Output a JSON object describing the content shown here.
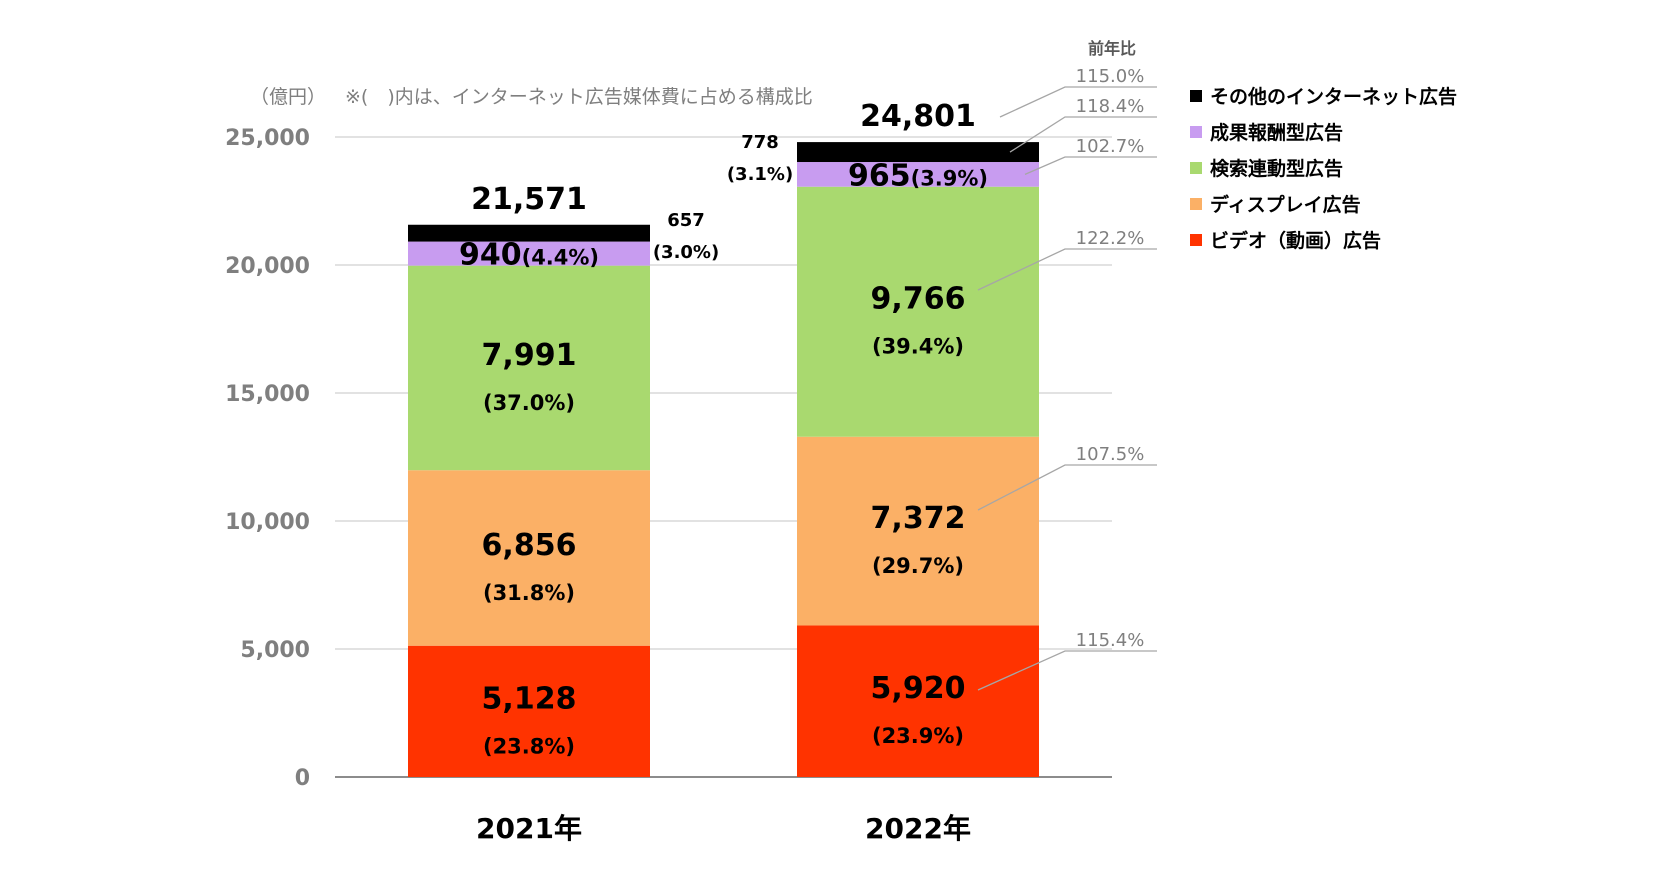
{
  "chart_data": {
    "type": "bar",
    "stacked": true,
    "unit_label": "（億円）",
    "note": "※(　)内は、インターネット広告媒体費に占める構成比",
    "yoy_header": "前年比",
    "categories": [
      "2021年",
      "2022年"
    ],
    "ylim": [
      0,
      25000
    ],
    "yticks": [
      "0",
      "5,000",
      "10,000",
      "15,000",
      "20,000",
      "25,000"
    ],
    "totals": [
      {
        "label": "21,571",
        "value": 21571
      },
      {
        "label": "24,801",
        "value": 24801
      }
    ],
    "series": [
      {
        "name": "ビデオ（動画）広告",
        "color": "#ff3300",
        "values": [
          5128,
          5920
        ],
        "value_labels": [
          "5,128",
          "5,920"
        ],
        "share_labels": [
          "(23.8%)",
          "(23.9%)"
        ],
        "yoy": "115.4%"
      },
      {
        "name": "ディスプレイ広告",
        "color": "#fbb066",
        "values": [
          6856,
          7372
        ],
        "value_labels": [
          "6,856",
          "7,372"
        ],
        "share_labels": [
          "(31.8%)",
          "(29.7%)"
        ],
        "yoy": "107.5%"
      },
      {
        "name": "検索連動型広告",
        "color": "#a9d96f",
        "values": [
          7991,
          9766
        ],
        "value_labels": [
          "7,991",
          "9,766"
        ],
        "share_labels": [
          "(37.0%)",
          "(39.4%)"
        ],
        "yoy": "122.2%"
      },
      {
        "name": "成果報酬型広告",
        "color": "#c89cf0",
        "values": [
          940,
          965
        ],
        "value_labels": [
          "940",
          "965"
        ],
        "share_labels": [
          "(4.4%)",
          "(3.9%)"
        ],
        "yoy": "102.7%"
      },
      {
        "name": "その他のインターネット広告",
        "color": "#000000",
        "values": [
          657,
          778
        ],
        "value_labels": [
          "657",
          "778"
        ],
        "share_labels": [
          "(3.0%)",
          "(3.1%)"
        ],
        "yoy": "118.4%"
      }
    ],
    "total_yoy": "115.0%",
    "legend_order": [
      4,
      3,
      2,
      1,
      0
    ],
    "legend_position": "right",
    "grid": true
  }
}
